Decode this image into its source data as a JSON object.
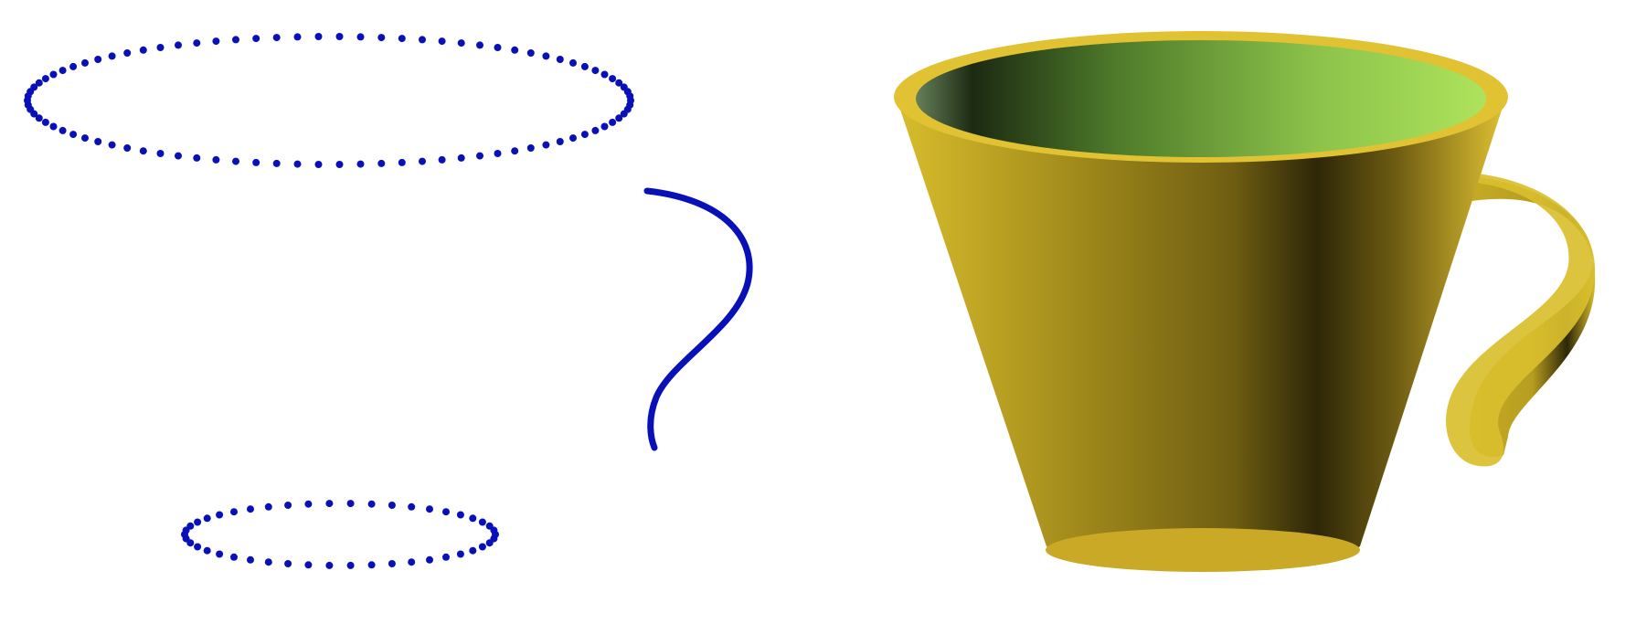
{
  "colors": {
    "background": "#ffffff",
    "point_blue": "#0a10b8",
    "cup_gold": "#d4b82a",
    "cup_gold_dark": "#2e2708",
    "cup_inner_light": "#a8e05a",
    "cup_inner_dark": "#1c2a12"
  },
  "left_panel": {
    "top_ring_points": 90,
    "bottom_ring_points": 46
  },
  "right_panel": {
    "shape": "cup with curved handle"
  }
}
